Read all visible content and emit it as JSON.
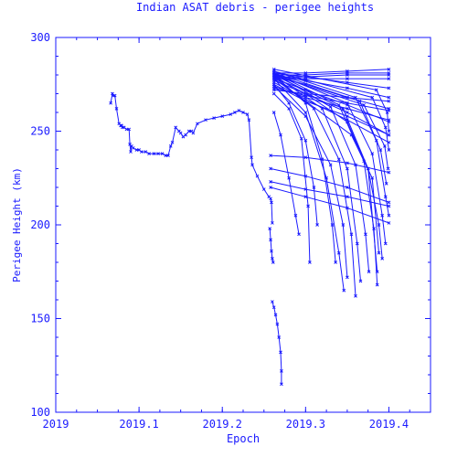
{
  "chart_data": {
    "type": "scatter",
    "title": "Indian ASAT debris - perigee heights",
    "xlabel": "Epoch",
    "ylabel": "Perigee Height (km)",
    "xlim": [
      2019.0,
      2019.45
    ],
    "ylim": [
      100,
      300
    ],
    "xticks": [
      2019,
      2019.1,
      2019.2,
      2019.3,
      2019.4
    ],
    "xtick_labels": [
      "2019",
      "2019.1",
      "2019.2",
      "2019.3",
      "2019.4"
    ],
    "yticks": [
      100,
      150,
      200,
      250,
      300
    ],
    "ytick_labels": [
      "100",
      "150",
      "200",
      "250",
      "300"
    ],
    "grid": false,
    "color": "#1a1aff",
    "series": [
      {
        "x": [
          2019.066,
          2019.068,
          2019.069,
          2019.071,
          2019.073,
          2019.076,
          2019.078,
          2019.079,
          2019.08,
          2019.082,
          2019.085,
          2019.088,
          2019.089,
          2019.09,
          2019.091,
          2019.093,
          2019.097,
          2019.1,
          2019.103,
          2019.108,
          2019.112,
          2019.118,
          2019.123,
          2019.128,
          2019.132,
          2019.135,
          2019.138,
          2019.14,
          2019.144,
          2019.148,
          2019.15,
          2019.153,
          2019.156,
          2019.16,
          2019.163,
          2019.165,
          2019.17,
          2019.18,
          2019.19,
          2019.2,
          2019.21,
          2019.215,
          2019.22,
          2019.225,
          2019.23,
          2019.232,
          2019.235,
          2019.236,
          2019.242,
          2019.25,
          2019.256,
          2019.258,
          2019.259,
          2019.26
        ],
        "y": [
          265,
          270,
          269,
          269,
          262,
          254,
          253,
          253,
          252,
          252,
          251,
          251,
          243,
          239,
          242,
          241,
          240,
          240,
          239,
          239,
          238,
          238,
          238,
          238,
          237,
          237,
          242,
          244,
          252,
          250,
          249,
          247,
          248,
          250,
          250,
          249,
          254,
          256,
          257,
          258,
          259,
          260,
          261,
          260,
          259,
          256,
          236,
          232,
          226,
          219,
          215,
          214,
          212,
          201
        ]
      },
      {
        "x": [
          2019.26,
          2019.262,
          2019.264,
          2019.266,
          2019.268,
          2019.27,
          2019.271,
          2019.271
        ],
        "y": [
          159,
          156,
          152,
          147,
          140,
          132,
          122,
          115
        ]
      },
      {
        "x": [
          2019.257,
          2019.258,
          2019.259,
          2019.26,
          2019.261
        ],
        "y": [
          198,
          192,
          186,
          182,
          180
        ]
      },
      {
        "x": [
          2019.258,
          2019.3,
          2019.35,
          2019.4
        ],
        "y": [
          237,
          236,
          233,
          228
        ]
      },
      {
        "x": [
          2019.258,
          2019.3,
          2019.35,
          2019.4
        ],
        "y": [
          223,
          219,
          215,
          210
        ]
      },
      {
        "x": [
          2019.258,
          2019.3,
          2019.35,
          2019.4
        ],
        "y": [
          220,
          215,
          209,
          201
        ]
      },
      {
        "x": [
          2019.258,
          2019.3,
          2019.35,
          2019.4
        ],
        "y": [
          230,
          226,
          220,
          212
        ]
      },
      {
        "x": [
          2019.262,
          2019.3,
          2019.35,
          2019.4
        ],
        "y": [
          281,
          281,
          282,
          283
        ]
      },
      {
        "x": [
          2019.262,
          2019.3,
          2019.35,
          2019.4
        ],
        "y": [
          280,
          280,
          281,
          281
        ]
      },
      {
        "x": [
          2019.262,
          2019.3,
          2019.35,
          2019.4
        ],
        "y": [
          279,
          279,
          280,
          280
        ]
      },
      {
        "x": [
          2019.262,
          2019.3,
          2019.35,
          2019.4
        ],
        "y": [
          278,
          278,
          278,
          278
        ]
      },
      {
        "x": [
          2019.262,
          2019.3,
          2019.35,
          2019.4
        ],
        "y": [
          281,
          279,
          276,
          273
        ]
      },
      {
        "x": [
          2019.262,
          2019.3,
          2019.35,
          2019.4
        ],
        "y": [
          280,
          277,
          273,
          268
        ]
      },
      {
        "x": [
          2019.262,
          2019.3,
          2019.35,
          2019.4
        ],
        "y": [
          279,
          275,
          268,
          262
        ]
      },
      {
        "x": [
          2019.262,
          2019.3,
          2019.35,
          2019.4
        ],
        "y": [
          278,
          272,
          264,
          255
        ]
      },
      {
        "x": [
          2019.262,
          2019.3,
          2019.35,
          2019.4
        ],
        "y": [
          277,
          270,
          260,
          248
        ]
      },
      {
        "x": [
          2019.262,
          2019.3,
          2019.35,
          2019.4
        ],
        "y": [
          276,
          267,
          256,
          244
        ]
      },
      {
        "x": [
          2019.262,
          2019.3,
          2019.35,
          2019.4
        ],
        "y": [
          275,
          266,
          258,
          248
        ]
      },
      {
        "x": [
          2019.262,
          2019.3,
          2019.35,
          2019.4
        ],
        "y": [
          274,
          268,
          262,
          256
        ]
      },
      {
        "x": [
          2019.262,
          2019.3,
          2019.35,
          2019.4
        ],
        "y": [
          273,
          269,
          265,
          261
        ]
      },
      {
        "x": [
          2019.262,
          2019.3,
          2019.35,
          2019.4
        ],
        "y": [
          272,
          270,
          268,
          266
        ]
      },
      {
        "x": [
          2019.262,
          2019.28,
          2019.295,
          2019.303,
          2019.305
        ],
        "y": [
          270,
          262,
          246,
          210,
          180
        ]
      },
      {
        "x": [
          2019.262,
          2019.28,
          2019.3,
          2019.31,
          2019.314
        ],
        "y": [
          275,
          265,
          245,
          220,
          200
        ]
      },
      {
        "x": [
          2019.262,
          2019.27,
          2019.28,
          2019.288,
          2019.292
        ],
        "y": [
          260,
          248,
          225,
          205,
          195
        ]
      },
      {
        "x": [
          2019.262,
          2019.3,
          2019.32,
          2019.332,
          2019.336
        ],
        "y": [
          280,
          265,
          235,
          200,
          180
        ]
      },
      {
        "x": [
          2019.262,
          2019.3,
          2019.325,
          2019.34,
          2019.346
        ],
        "y": [
          278,
          260,
          225,
          185,
          165
        ]
      },
      {
        "x": [
          2019.262,
          2019.3,
          2019.33,
          2019.345,
          2019.35
        ],
        "y": [
          274,
          258,
          232,
          200,
          172
        ]
      },
      {
        "x": [
          2019.262,
          2019.31,
          2019.34,
          2019.355,
          2019.36
        ],
        "y": [
          279,
          262,
          235,
          195,
          162
        ]
      },
      {
        "x": [
          2019.262,
          2019.32,
          2019.35,
          2019.362,
          2019.366
        ],
        "y": [
          280,
          262,
          230,
          190,
          170
        ]
      },
      {
        "x": [
          2019.262,
          2019.33,
          2019.36,
          2019.372,
          2019.376
        ],
        "y": [
          281,
          263,
          232,
          195,
          175
        ]
      },
      {
        "x": [
          2019.262,
          2019.34,
          2019.37,
          2019.382,
          2019.386
        ],
        "y": [
          281,
          264,
          234,
          198,
          168
        ]
      },
      {
        "x": [
          2019.262,
          2019.345,
          2019.375,
          2019.388,
          2019.392
        ],
        "y": [
          280,
          262,
          230,
          200,
          182
        ]
      },
      {
        "x": [
          2019.262,
          2019.35,
          2019.38,
          2019.392,
          2019.396
        ],
        "y": [
          281,
          265,
          238,
          205,
          190
        ]
      },
      {
        "x": [
          2019.262,
          2019.36,
          2019.385,
          2019.396,
          2019.4
        ],
        "y": [
          282,
          268,
          245,
          215,
          205
        ]
      },
      {
        "x": [
          2019.262,
          2019.365,
          2019.39,
          2019.397
        ],
        "y": [
          281,
          266,
          240,
          222
        ]
      },
      {
        "x": [
          2019.262,
          2019.37,
          2019.395,
          2019.399
        ],
        "y": [
          280,
          264,
          242,
          230
        ]
      },
      {
        "x": [
          2019.262,
          2019.38,
          2019.396,
          2019.4
        ],
        "y": [
          282,
          268,
          252,
          240
        ]
      },
      {
        "x": [
          2019.262,
          2019.385,
          2019.398,
          2019.4
        ],
        "y": [
          283,
          272,
          260,
          250
        ]
      },
      {
        "x": [
          2019.262,
          2019.3,
          2019.35,
          2019.375,
          2019.386
        ],
        "y": [
          279,
          270,
          255,
          230,
          175
        ]
      },
      {
        "x": [
          2019.262,
          2019.3,
          2019.355,
          2019.38,
          2019.388
        ],
        "y": [
          278,
          266,
          248,
          225,
          185
        ]
      }
    ]
  }
}
